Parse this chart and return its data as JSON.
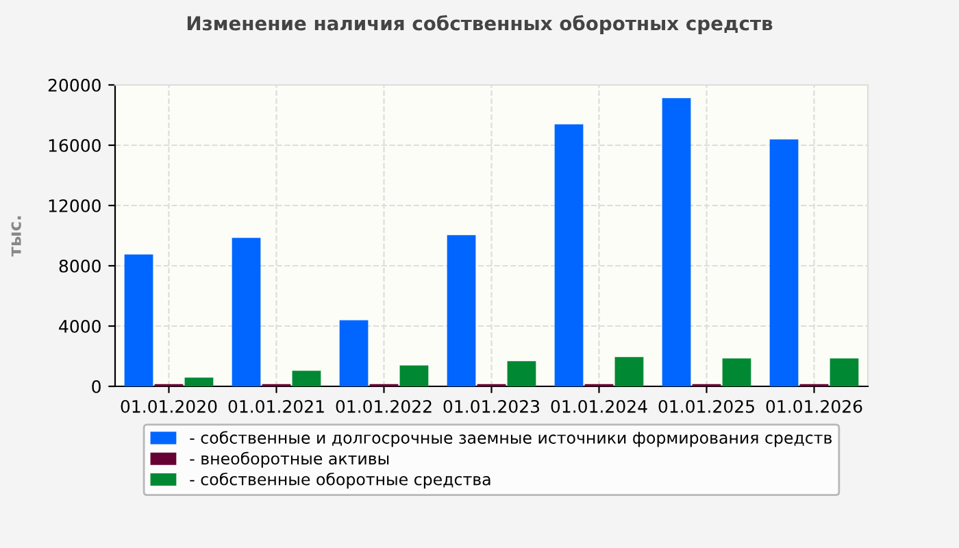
{
  "chart_data": {
    "type": "bar",
    "title": "Изменение наличия собственных оборотных средств",
    "ylabel": "тыс.",
    "categories": [
      "01.01.2020",
      "01.01.2021",
      "01.01.2022",
      "01.01.2023",
      "01.01.2024",
      "01.01.2025",
      "01.01.2026"
    ],
    "series": [
      {
        "name": "- собственные и долгосрочные заемные источники формирования средств",
        "color": "#0066ff",
        "values": [
          8750,
          9850,
          4390,
          10030,
          17390,
          19120,
          16390
        ]
      },
      {
        "name": "- внеоборотные активы",
        "color": "#660033",
        "values": [
          150,
          150,
          150,
          150,
          150,
          150,
          150
        ]
      },
      {
        "name": "- собственные оборотные средства",
        "color": "#008833",
        "values": [
          580,
          1030,
          1390,
          1670,
          1940,
          1850,
          1850
        ]
      }
    ],
    "ylim": [
      0,
      20000
    ],
    "yticks": [
      0,
      4000,
      8000,
      12000,
      16000,
      20000
    ],
    "grid": true,
    "legend": "bottom"
  }
}
